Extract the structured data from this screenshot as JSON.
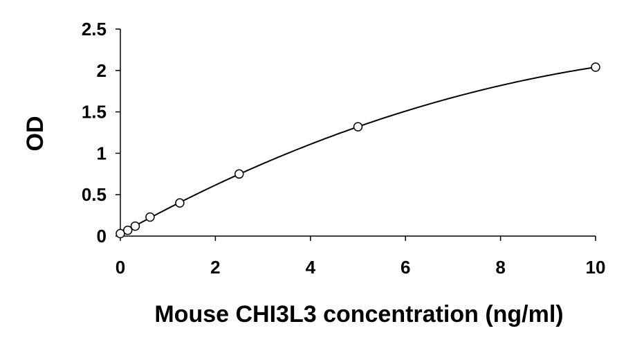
{
  "chart_data": {
    "type": "scatter",
    "title": "",
    "xlabel": "Mouse CHI3L3 concentration (ng/ml)",
    "ylabel": "OD",
    "xlim": [
      0,
      10
    ],
    "ylim": [
      0,
      2.5
    ],
    "x_ticks": [
      {
        "value": 0,
        "label": "0"
      },
      {
        "value": 2,
        "label": "2"
      },
      {
        "value": 4,
        "label": "4"
      },
      {
        "value": 6,
        "label": "6"
      },
      {
        "value": 8,
        "label": "8"
      },
      {
        "value": 10,
        "label": "10"
      }
    ],
    "y_ticks": [
      {
        "value": 0,
        "label": "0"
      },
      {
        "value": 0.5,
        "label": "0.5"
      },
      {
        "value": 1,
        "label": "1"
      },
      {
        "value": 1.5,
        "label": "1.5"
      },
      {
        "value": 2,
        "label": "2"
      },
      {
        "value": 2.5,
        "label": "2.5"
      }
    ],
    "grid": false,
    "legend": "none",
    "series": [
      {
        "marker": "open-circle",
        "trendline": true,
        "x": [
          0,
          0.156,
          0.3125,
          0.625,
          1.25,
          2.5,
          5,
          10
        ],
        "y": [
          0.03,
          0.07,
          0.12,
          0.23,
          0.4,
          0.75,
          1.32,
          2.04
        ]
      }
    ],
    "colors": {
      "axis": "#000000",
      "marker": "#000000",
      "line": "#000000"
    }
  }
}
